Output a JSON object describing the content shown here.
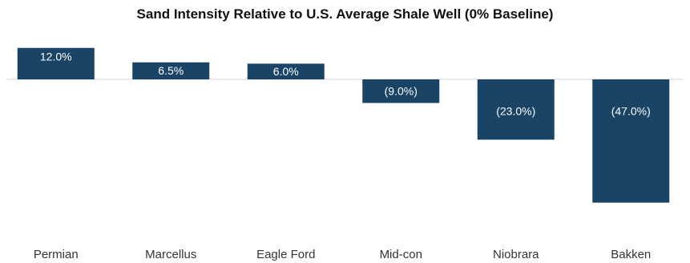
{
  "chart_data": {
    "type": "bar",
    "title": "Sand Intensity Relative to U.S. Average Shale Well (0% Baseline)",
    "categories": [
      "Permian",
      "Marcellus",
      "Eagle Ford",
      "Mid-con",
      "Niobrara",
      "Bakken"
    ],
    "values": [
      12.0,
      6.5,
      6.0,
      -9.0,
      -23.0,
      -47.0
    ],
    "data_labels": [
      "12.0%",
      "6.5%",
      "6.0%",
      "(9.0%)",
      "(23.0%)",
      "(47.0%)"
    ],
    "xlabel": "",
    "ylabel": "",
    "ylim": [
      -50,
      15
    ],
    "grid": false,
    "legend": "none",
    "colors": {
      "bar": "#1a4466",
      "label": "#ffffff",
      "baseline": "#e2e2ea",
      "axis_text": "#333333"
    }
  }
}
